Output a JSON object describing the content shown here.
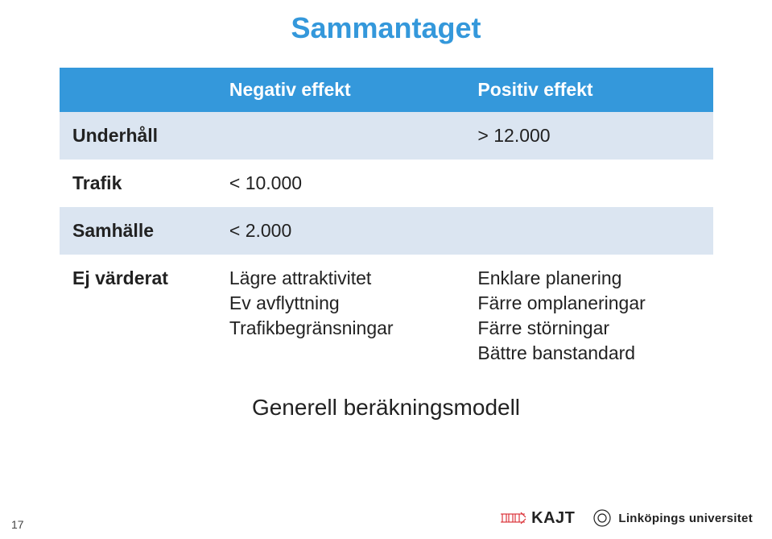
{
  "title": "Sammantaget",
  "subtitle": "Generell beräkningsmodell",
  "page_number": "17",
  "table": {
    "header_bg": "#3498db",
    "header_color": "#ffffff",
    "row_odd_bg": "#dbe5f1",
    "row_even_bg": "#ffffff",
    "columns": [
      "",
      "Negativ effekt",
      "Positiv effekt"
    ],
    "col_widths": [
      "24%",
      "38%",
      "38%"
    ],
    "rows": [
      {
        "label": "Underhåll",
        "neg": "",
        "pos": "> 12.000"
      },
      {
        "label": "Trafik",
        "neg": "< 10.000",
        "pos": ""
      },
      {
        "label": "Samhälle",
        "neg": "< 2.000",
        "pos": ""
      },
      {
        "label": "Ej värderat",
        "neg": "Lägre attraktivitet\nEv avflyttning\nTrafikbegränsningar",
        "pos": "Enklare planering\nFärre omplaneringar\nFärre störningar\nBättre banstandard"
      }
    ]
  },
  "footer": {
    "kajt_label": "KAJT",
    "liu_label": "Linköpings universitet"
  },
  "title_color": "#3498db"
}
